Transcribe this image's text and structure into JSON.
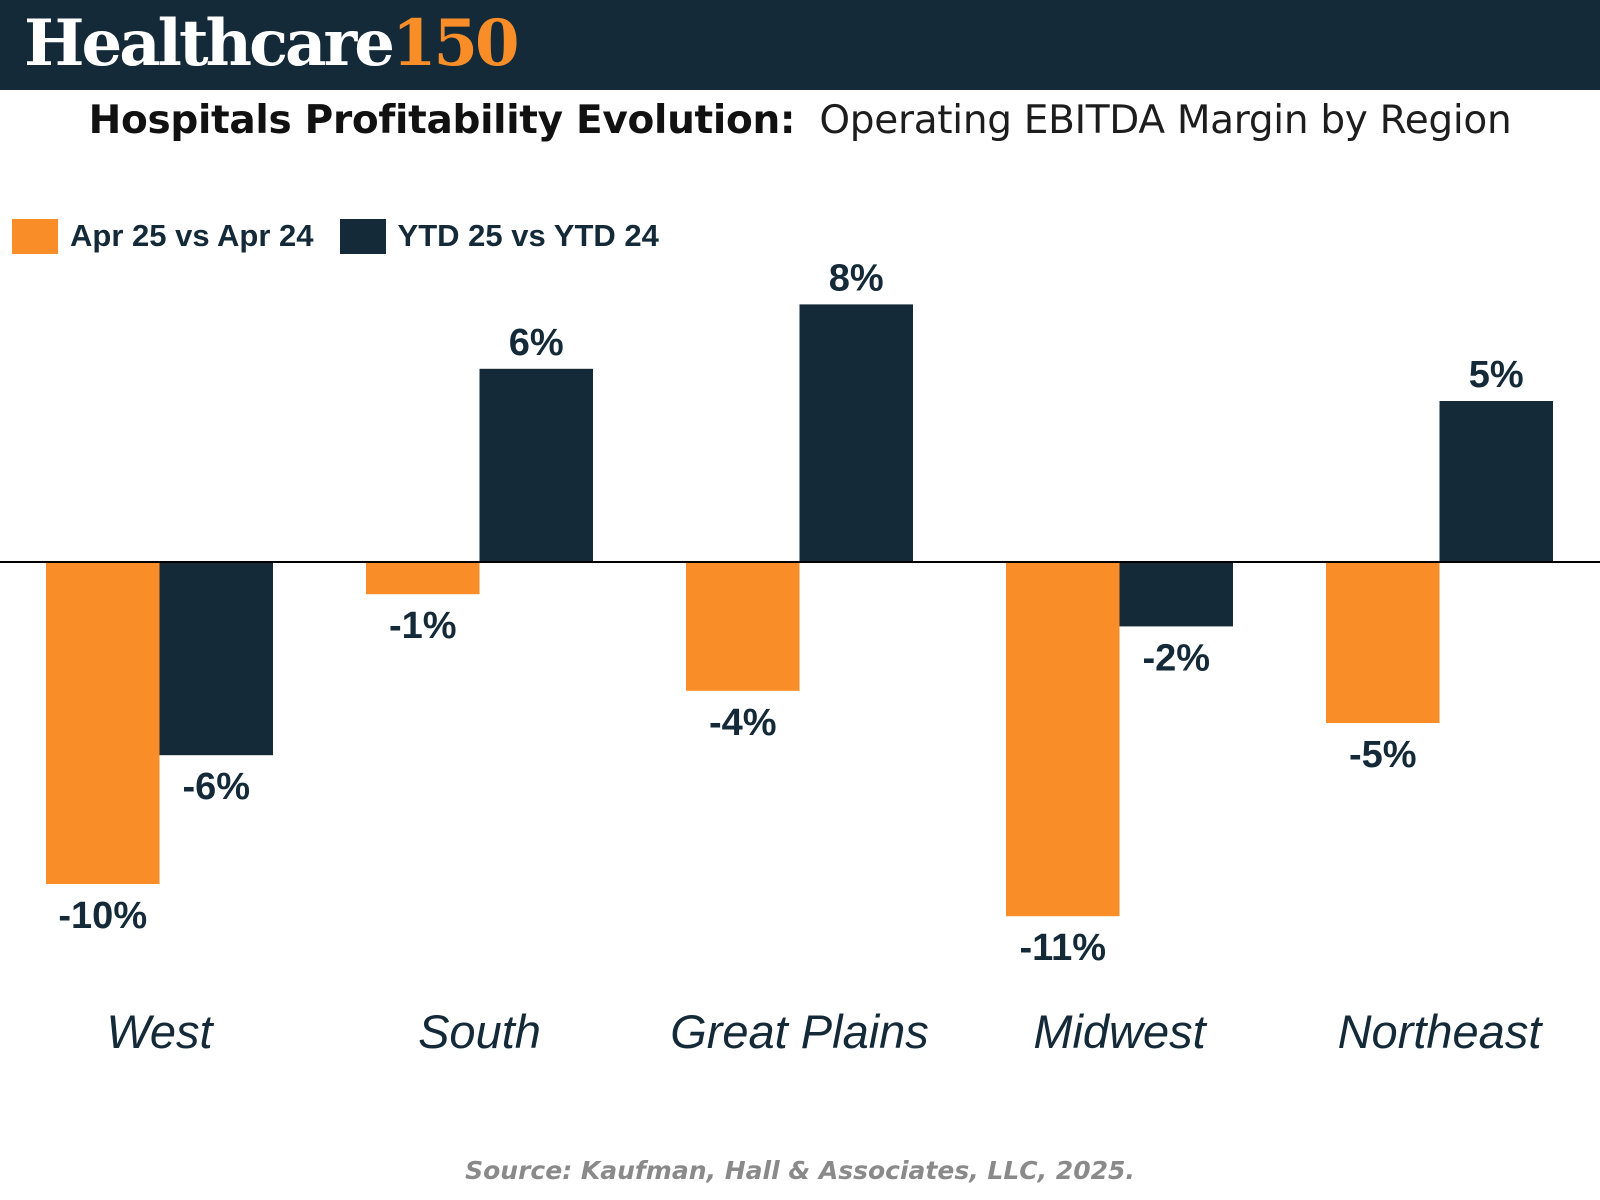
{
  "brand": {
    "word": "Healthcare",
    "number": "150"
  },
  "title": {
    "bold": "Hospitals Profitability Evolution:",
    "rest": "Operating EBITDA Margin by Region"
  },
  "source": "Source: Kaufman, Hall & Associates, LLC, 2025.",
  "colors": {
    "orange": "#f98d28",
    "navy": "#142a38",
    "header_bg": "#142a38"
  },
  "chart_data": {
    "type": "bar",
    "title": "Hospitals Profitability Evolution: Operating EBITDA Margin by Region",
    "xlabel": "",
    "ylabel": "",
    "categories": [
      "West",
      "South",
      "Great Plains",
      "Midwest",
      "Northeast"
    ],
    "series": [
      {
        "name": "Apr 25 vs Apr 24",
        "color": "#f98d28",
        "values": [
          -10,
          -1,
          -4,
          -11,
          -5
        ],
        "labels": [
          "-10%",
          "-1%",
          "-4%",
          "-11%",
          "-5%"
        ]
      },
      {
        "name": "YTD 25 vs YTD 24",
        "color": "#142a38",
        "values": [
          -6,
          6,
          8,
          -2,
          5
        ],
        "labels": [
          "-6%",
          "6%",
          "8%",
          "-2%",
          "5%"
        ]
      }
    ],
    "value_suffix": "%",
    "ylim": [
      -11,
      8
    ],
    "grid": false,
    "legend": "top-left"
  }
}
